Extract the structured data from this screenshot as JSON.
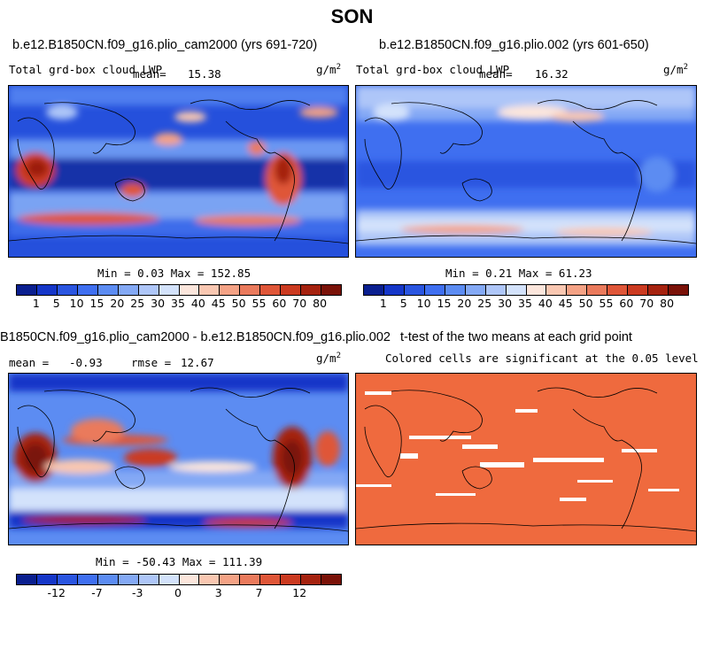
{
  "figure": {
    "title": "SON",
    "units": "g/m",
    "units_sup": "2"
  },
  "panels": {
    "p1": {
      "title": "b.e12.B1850CN.f09_g16.plio_cam2000 (yrs 691-720)",
      "variable": "Total grd-box cloud LWP",
      "mean_label": "mean=",
      "mean": "15.38",
      "stats": "Min =   0.03 Max = 152.85"
    },
    "p2": {
      "title": "b.e12.B1850CN.f09_g16.plio.002 (yrs 601-650)",
      "variable": "Total grd-box cloud LWP",
      "mean_label": "mean=",
      "mean": "16.32",
      "stats": "Min =   0.21 Max =  61.23"
    },
    "p3": {
      "title": "B1850CN.f09_g16.plio_cam2000 - b.e12.B1850CN.f09_g16.plio.002",
      "mean_label": "mean =",
      "mean": "-0.93",
      "rmse_label": "rmse =",
      "rmse": "12.67",
      "stats": "Min = -50.43 Max = 111.39"
    },
    "p4": {
      "title": "t-test of the two means at each grid point",
      "subtitle": "Colored cells are significant at the 0.05 level"
    }
  },
  "colorbars": {
    "abs": {
      "labels": [
        "1",
        "5",
        "10",
        "15",
        "20",
        "25",
        "30",
        "35",
        "40",
        "45",
        "50",
        "55",
        "60",
        "70",
        "80"
      ],
      "colors": [
        "#0a1f8f",
        "#1536c8",
        "#2a55e0",
        "#3f6ff0",
        "#5c8cf2",
        "#84a9f5",
        "#aec6f8",
        "#d3e2fb",
        "#fce6dc",
        "#f9c7b1",
        "#f4a285",
        "#ea7a5c",
        "#df5638",
        "#cb3a20",
        "#a5220f",
        "#7a1208"
      ]
    },
    "diff": {
      "labels": [
        "-12",
        "-7",
        "-3",
        "0",
        "3",
        "7",
        "12"
      ],
      "colors": [
        "#0a1f8f",
        "#1536c8",
        "#2a55e0",
        "#3f6ff0",
        "#5c8cf2",
        "#84a9f5",
        "#aec6f8",
        "#d3e2fb",
        "#fce6dc",
        "#f9c7b1",
        "#f4a285",
        "#ea7a5c",
        "#df5638",
        "#cb3a20",
        "#a5220f",
        "#7a1208"
      ]
    }
  },
  "chart_data": [
    {
      "type": "heatmap",
      "title": "b.e12.B1850CN.f09_g16.plio_cam2000 (yrs 691-720)",
      "variable": "Total grd-box cloud LWP",
      "units": "g/m2",
      "mean": 15.38,
      "min": 0.03,
      "max": 152.85,
      "levels": [
        1,
        5,
        10,
        15,
        20,
        25,
        30,
        35,
        40,
        45,
        50,
        55,
        60,
        70,
        80
      ]
    },
    {
      "type": "heatmap",
      "title": "b.e12.B1850CN.f09_g16.plio.002 (yrs 601-650)",
      "variable": "Total grd-box cloud LWP",
      "units": "g/m2",
      "mean": 16.32,
      "min": 0.21,
      "max": 61.23,
      "levels": [
        1,
        5,
        10,
        15,
        20,
        25,
        30,
        35,
        40,
        45,
        50,
        55,
        60,
        70,
        80
      ]
    },
    {
      "type": "heatmap",
      "title": "B1850CN.f09_g16.plio_cam2000 - b.e12.B1850CN.f09_g16.plio.002",
      "units": "g/m2",
      "mean": -0.93,
      "rmse": 12.67,
      "min": -50.43,
      "max": 111.39,
      "levels": [
        -12,
        -7,
        -3,
        0,
        3,
        7,
        12
      ]
    },
    {
      "type": "heatmap",
      "title": "t-test of the two means at each grid point",
      "subtitle": "Colored cells are significant at the 0.05 level"
    }
  ]
}
